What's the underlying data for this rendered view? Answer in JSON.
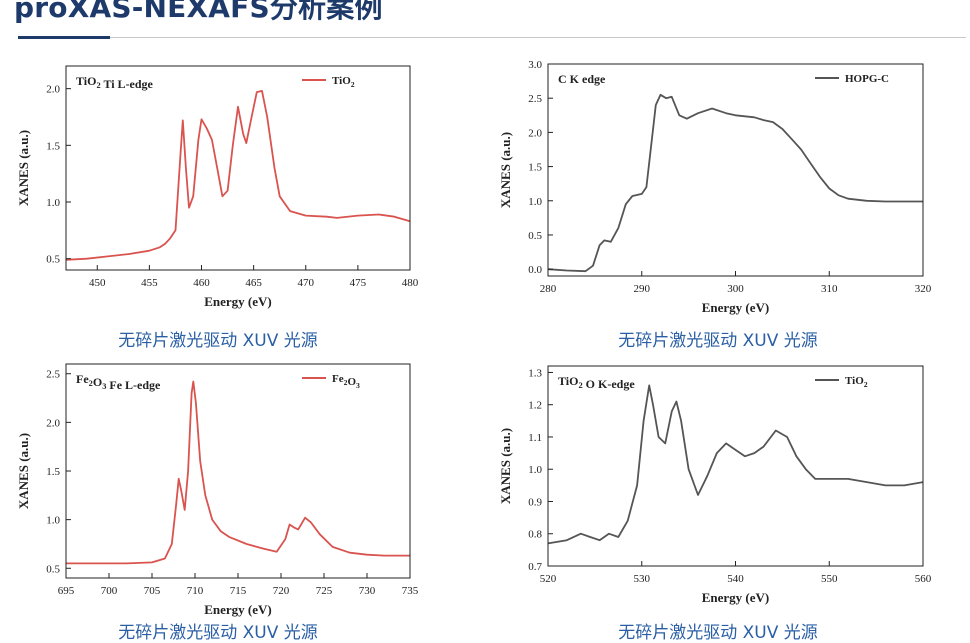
{
  "header": {
    "title": "proXAS-NEXAFS分析案例"
  },
  "colors": {
    "title": "#1d3a6b",
    "caption": "#2a5fa5",
    "red_series": "#d9534f",
    "gray_series": "#555555"
  },
  "panels": [
    {
      "caption": "无碎片激光驱动 XUV 光源"
    },
    {
      "caption": "无碎片激光驱动 XUV 光源"
    },
    {
      "caption": "无碎片激光驱动 XUV 光源"
    },
    {
      "caption": "无碎片激光驱动 XUV 光源"
    }
  ],
  "chart_data": [
    {
      "type": "line",
      "title": "TiO2 Ti L-edge",
      "xlabel": "Energy (eV)",
      "ylabel": "XANES (a.u.)",
      "xlim": [
        447,
        480
      ],
      "ylim": [
        0.4,
        2.2
      ],
      "xticks": [
        450,
        455,
        460,
        465,
        470,
        475,
        480
      ],
      "yticks": [
        0.5,
        1.0,
        1.5,
        2.0
      ],
      "legend": "top-right",
      "series": [
        {
          "name": "TiO2",
          "color": "#d9534f",
          "points": [
            [
              447,
              0.49
            ],
            [
              449,
              0.5
            ],
            [
              451,
              0.52
            ],
            [
              453,
              0.54
            ],
            [
              455,
              0.57
            ],
            [
              456,
              0.6
            ],
            [
              456.5,
              0.63
            ],
            [
              457,
              0.68
            ],
            [
              457.5,
              0.75
            ],
            [
              458.0,
              1.45
            ],
            [
              458.2,
              1.72
            ],
            [
              458.5,
              1.3
            ],
            [
              458.8,
              0.95
            ],
            [
              459.2,
              1.05
            ],
            [
              459.7,
              1.55
            ],
            [
              460.0,
              1.73
            ],
            [
              460.5,
              1.65
            ],
            [
              461.0,
              1.55
            ],
            [
              461.5,
              1.3
            ],
            [
              462.0,
              1.05
            ],
            [
              462.5,
              1.1
            ],
            [
              463.0,
              1.5
            ],
            [
              463.5,
              1.84
            ],
            [
              464.0,
              1.6
            ],
            [
              464.3,
              1.52
            ],
            [
              464.8,
              1.75
            ],
            [
              465.3,
              1.97
            ],
            [
              465.8,
              1.98
            ],
            [
              466.3,
              1.75
            ],
            [
              467.0,
              1.3
            ],
            [
              467.5,
              1.05
            ],
            [
              468.5,
              0.92
            ],
            [
              470,
              0.88
            ],
            [
              472,
              0.87
            ],
            [
              473,
              0.86
            ],
            [
              475,
              0.88
            ],
            [
              477,
              0.89
            ],
            [
              478.5,
              0.87
            ],
            [
              480,
              0.83
            ]
          ]
        }
      ]
    },
    {
      "type": "line",
      "title": "C K edge",
      "xlabel": "Energy (eV)",
      "ylabel": "XANES (a.u.)",
      "xlim": [
        280,
        320
      ],
      "ylim": [
        -0.1,
        3.0
      ],
      "xticks": [
        280,
        290,
        300,
        310,
        320
      ],
      "yticks": [
        0.0,
        0.5,
        1.0,
        1.5,
        2.0,
        2.5,
        3.0
      ],
      "legend": "top-right",
      "series": [
        {
          "name": "HOPG-C",
          "color": "#555555",
          "points": [
            [
              280,
              0.0
            ],
            [
              282,
              -0.02
            ],
            [
              284,
              -0.03
            ],
            [
              284.8,
              0.05
            ],
            [
              285.5,
              0.35
            ],
            [
              286,
              0.42
            ],
            [
              286.7,
              0.4
            ],
            [
              287.5,
              0.6
            ],
            [
              288.3,
              0.95
            ],
            [
              289,
              1.07
            ],
            [
              290,
              1.1
            ],
            [
              290.5,
              1.2
            ],
            [
              291,
              1.8
            ],
            [
              291.5,
              2.4
            ],
            [
              292,
              2.55
            ],
            [
              292.6,
              2.5
            ],
            [
              293.2,
              2.52
            ],
            [
              294,
              2.25
            ],
            [
              294.8,
              2.2
            ],
            [
              296,
              2.28
            ],
            [
              297.5,
              2.35
            ],
            [
              299,
              2.28
            ],
            [
              300,
              2.25
            ],
            [
              302,
              2.22
            ],
            [
              303,
              2.18
            ],
            [
              304,
              2.15
            ],
            [
              305,
              2.05
            ],
            [
              306,
              1.9
            ],
            [
              307,
              1.75
            ],
            [
              308,
              1.55
            ],
            [
              309,
              1.35
            ],
            [
              310,
              1.18
            ],
            [
              311,
              1.08
            ],
            [
              312,
              1.03
            ],
            [
              314,
              1.0
            ],
            [
              316,
              0.99
            ],
            [
              318,
              0.99
            ],
            [
              320,
              0.99
            ]
          ]
        }
      ]
    },
    {
      "type": "line",
      "title": "Fe2O3 Fe L-edge",
      "xlabel": "Energy (eV)",
      "ylabel": "XANES (a.u.)",
      "xlim": [
        695,
        735
      ],
      "ylim": [
        0.4,
        2.6
      ],
      "xticks": [
        695,
        700,
        705,
        710,
        715,
        720,
        725,
        730,
        735
      ],
      "yticks": [
        0.5,
        1.0,
        1.5,
        2.0,
        2.5
      ],
      "legend": "top-right",
      "series": [
        {
          "name": "Fe2O3",
          "color": "#d9534f",
          "points": [
            [
              695,
              0.55
            ],
            [
              698,
              0.55
            ],
            [
              702,
              0.55
            ],
            [
              705,
              0.56
            ],
            [
              706.5,
              0.6
            ],
            [
              707.3,
              0.75
            ],
            [
              707.8,
              1.15
            ],
            [
              708.1,
              1.42
            ],
            [
              708.4,
              1.3
            ],
            [
              708.8,
              1.1
            ],
            [
              709.2,
              1.5
            ],
            [
              709.6,
              2.3
            ],
            [
              709.8,
              2.42
            ],
            [
              710.1,
              2.2
            ],
            [
              710.6,
              1.6
            ],
            [
              711.2,
              1.25
            ],
            [
              712,
              1.0
            ],
            [
              713,
              0.88
            ],
            [
              714,
              0.82
            ],
            [
              716,
              0.75
            ],
            [
              718,
              0.7
            ],
            [
              719.5,
              0.67
            ],
            [
              720.5,
              0.8
            ],
            [
              721,
              0.95
            ],
            [
              721.5,
              0.92
            ],
            [
              722,
              0.9
            ],
            [
              722.8,
              1.02
            ],
            [
              723.5,
              0.97
            ],
            [
              724.5,
              0.85
            ],
            [
              726,
              0.72
            ],
            [
              728,
              0.66
            ],
            [
              730,
              0.64
            ],
            [
              732,
              0.63
            ],
            [
              735,
              0.63
            ]
          ]
        }
      ]
    },
    {
      "type": "line",
      "title": "TiO2 O K-edge",
      "xlabel": "Energy (eV)",
      "ylabel": "XANES (a.u.)",
      "xlim": [
        520,
        560
      ],
      "ylim": [
        0.7,
        1.32
      ],
      "xticks": [
        520,
        530,
        540,
        550,
        560
      ],
      "yticks": [
        0.7,
        0.8,
        0.9,
        1.0,
        1.1,
        1.2,
        1.3
      ],
      "legend": "top-right",
      "series": [
        {
          "name": "TiO2",
          "color": "#555555",
          "points": [
            [
              520,
              0.77
            ],
            [
              522,
              0.78
            ],
            [
              523.5,
              0.8
            ],
            [
              524.5,
              0.79
            ],
            [
              525.5,
              0.78
            ],
            [
              526.5,
              0.8
            ],
            [
              527.5,
              0.79
            ],
            [
              528.5,
              0.84
            ],
            [
              529.5,
              0.95
            ],
            [
              530.2,
              1.15
            ],
            [
              530.8,
              1.26
            ],
            [
              531.2,
              1.2
            ],
            [
              531.8,
              1.1
            ],
            [
              532.5,
              1.08
            ],
            [
              533.2,
              1.18
            ],
            [
              533.7,
              1.21
            ],
            [
              534.2,
              1.15
            ],
            [
              535,
              1.0
            ],
            [
              536,
              0.92
            ],
            [
              537,
              0.98
            ],
            [
              538,
              1.05
            ],
            [
              539,
              1.08
            ],
            [
              540,
              1.06
            ],
            [
              541,
              1.04
            ],
            [
              542,
              1.05
            ],
            [
              543,
              1.07
            ],
            [
              544.3,
              1.12
            ],
            [
              545.5,
              1.1
            ],
            [
              546.5,
              1.04
            ],
            [
              547.5,
              1.0
            ],
            [
              548.5,
              0.97
            ],
            [
              550,
              0.97
            ],
            [
              552,
              0.97
            ],
            [
              554,
              0.96
            ],
            [
              556,
              0.95
            ],
            [
              558,
              0.95
            ],
            [
              560,
              0.96
            ]
          ]
        }
      ]
    }
  ]
}
